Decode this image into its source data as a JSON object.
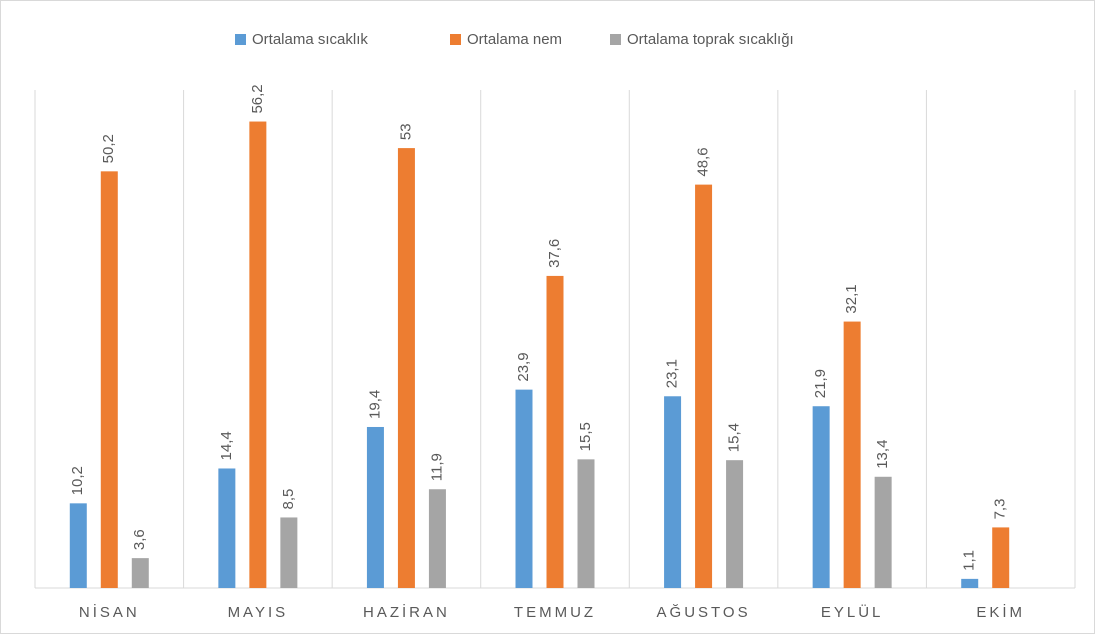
{
  "chart_data": {
    "type": "bar",
    "categories": [
      "NİSAN",
      "MAYIS",
      "HAZİRAN",
      "TEMMUZ",
      "AĞUSTOS",
      "EYLÜL",
      "EKİM"
    ],
    "series": [
      {
        "name": "Ortalama sıcaklık",
        "color": "#5b9bd5",
        "values": [
          10.2,
          14.4,
          19.4,
          23.9,
          23.1,
          21.9,
          1.1
        ],
        "value_labels": [
          "10,2",
          "14,4",
          "19,4",
          "23,9",
          "23,1",
          "21,9",
          "1,1"
        ]
      },
      {
        "name": "Ortalama nem",
        "color": "#ed7d31",
        "values": [
          50.2,
          56.2,
          53,
          37.6,
          48.6,
          32.1,
          7.3
        ],
        "value_labels": [
          "50,2",
          "56,2",
          "53",
          "37,6",
          "48,6",
          "32,1",
          "7,3"
        ]
      },
      {
        "name": "Ortalama toprak sıcaklığı",
        "color": "#a5a5a5",
        "values": [
          3.6,
          8.5,
          11.9,
          15.5,
          15.4,
          13.4,
          null
        ],
        "value_labels": [
          "3,6",
          "8,5",
          "11,9",
          "15,5",
          "15,4",
          "13,4",
          null
        ]
      }
    ],
    "ylim": [
      0,
      60
    ],
    "legend": "top"
  }
}
